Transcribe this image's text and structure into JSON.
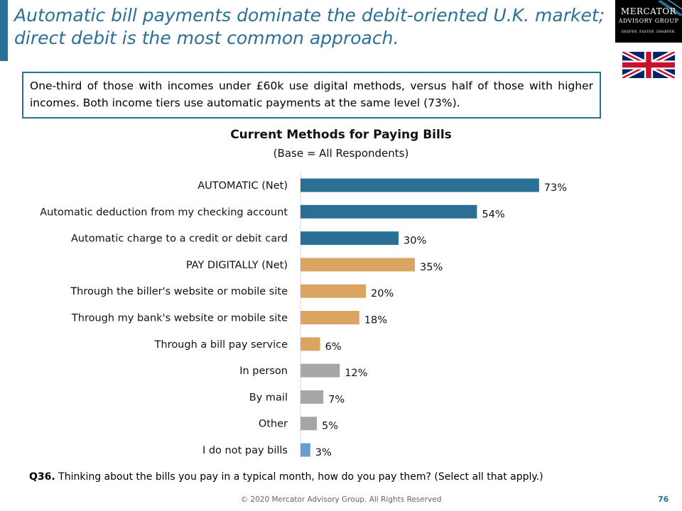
{
  "header": {
    "title": "Automatic bill payments dominate the debit-oriented U.K. market; direct debit is the most common approach.",
    "logo": {
      "line1": "Mercator",
      "line2": "Advisory Group",
      "line3": "Deeper. Faster. Sharper."
    },
    "flag_icon": "uk-flag-icon"
  },
  "callout": {
    "text": "One-third of those with incomes under £60k use digital methods, versus half of those with higher incomes. Both income tiers use automatic payments at the same level (73%)."
  },
  "chart_data": {
    "type": "bar",
    "orientation": "horizontal",
    "title": "Current Methods for Paying Bills",
    "subtitle": "(Base = All Respondents)",
    "categories": [
      "AUTOMATIC (Net)",
      "Automatic deduction from my checking account",
      "Automatic charge to a credit or debit card",
      "PAY DIGITALLY (Net)",
      "Through the biller's website or mobile site",
      "Through my bank's website or mobile site",
      "Through a bill pay service",
      "In person",
      "By mail",
      "Other",
      "I do not pay bills"
    ],
    "values": [
      73,
      54,
      30,
      35,
      20,
      18,
      6,
      12,
      7,
      5,
      3
    ],
    "value_labels": [
      "73%",
      "54%",
      "30%",
      "35%",
      "20%",
      "18%",
      "6%",
      "12%",
      "7%",
      "5%",
      "3%"
    ],
    "colors": [
      "#2a7095",
      "#2a7095",
      "#2a7095",
      "#dca462",
      "#dca462",
      "#dca462",
      "#dca462",
      "#a6a6a6",
      "#a6a6a6",
      "#a6a6a6",
      "#6c9bd2"
    ],
    "xlim": [
      0,
      100
    ],
    "grid": false,
    "legend": "none"
  },
  "question": {
    "label": "Q36.",
    "text": " Thinking about the bills you pay in a typical month, how do you pay them? (Select all that apply.)"
  },
  "footer": {
    "copyright": "© 2020 Mercator Advisory Group. All Rights Reserved",
    "page_number": "76"
  }
}
